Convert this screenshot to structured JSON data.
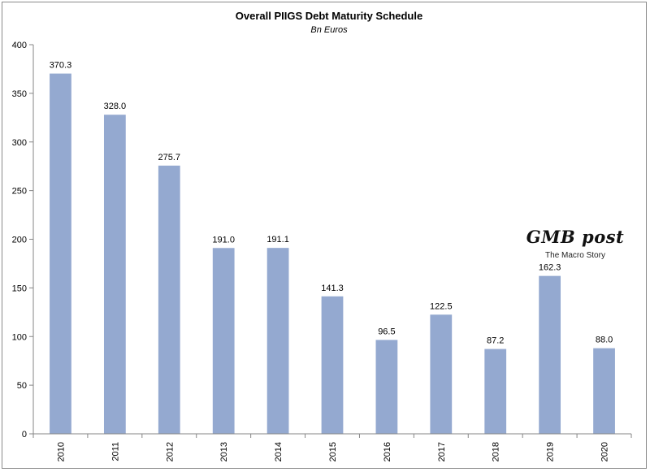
{
  "chart_data": {
    "type": "bar",
    "title": "Overall PIIGS Debt Maturity Schedule",
    "subtitle": "Bn Euros",
    "categories": [
      "2010",
      "2011",
      "2012",
      "2013",
      "2014",
      "2015",
      "2016",
      "2017",
      "2018",
      "2019",
      "2020"
    ],
    "values": [
      370.3,
      328.0,
      275.7,
      191.0,
      191.1,
      141.3,
      96.5,
      122.5,
      87.2,
      162.3,
      88.0
    ],
    "data_labels": [
      "370.3",
      "328.0",
      "275.7",
      "191.0",
      "191.1",
      "141.3",
      "96.5",
      "122.5",
      "87.2",
      "162.3",
      "88.0"
    ],
    "ylim": [
      0,
      400
    ],
    "yticks": [
      "0",
      "50",
      "100",
      "150",
      "200",
      "250",
      "300",
      "350",
      "400"
    ],
    "grid": false,
    "legend": "none",
    "bar_color": "#94a9d0"
  },
  "watermark": {
    "title": "GMB post",
    "subtitle": "The Macro Story"
  }
}
